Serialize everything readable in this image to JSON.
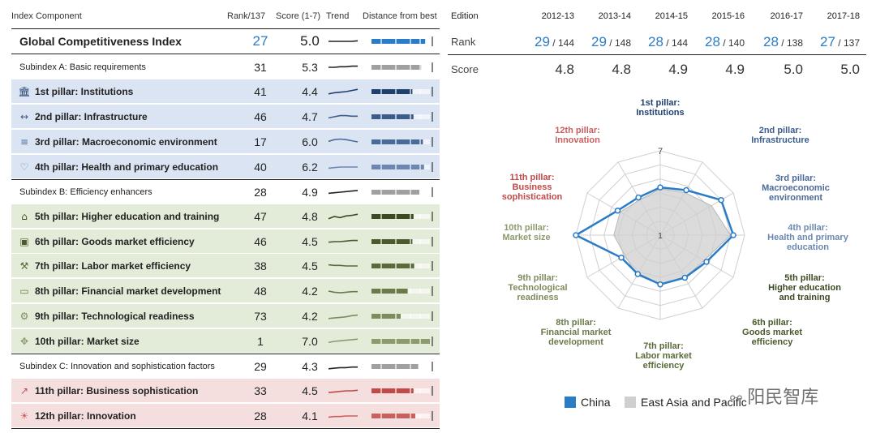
{
  "headers": {
    "index_component": "Index Component",
    "rank": "Rank/137",
    "score": "Score (1-7)",
    "trend": "Trend",
    "distance": "Distance from best"
  },
  "rows": [
    {
      "name": "Global Competitiveness Index",
      "rank": "27",
      "score": "5.0",
      "kind": "gci",
      "trend": [
        0.5,
        0.5,
        0.5,
        0.5,
        0.5,
        0.55
      ],
      "dist": 0.92,
      "color": "#2a7cc7",
      "icon": ""
    },
    {
      "name": "Subindex A: Basic requirements",
      "rank": "31",
      "score": "5.3",
      "kind": "sub",
      "trend": [
        0.5,
        0.5,
        0.55,
        0.55,
        0.6,
        0.6
      ],
      "dist": 0.85,
      "color": "#a0a0a0",
      "icon": ""
    },
    {
      "name": "1st pillar: Institutions",
      "rank": "41",
      "score": "4.4",
      "kind": "blue",
      "trend": [
        0.3,
        0.4,
        0.45,
        0.5,
        0.6,
        0.7
      ],
      "dist": 0.7,
      "color": "#1f3f6e",
      "icon": "institutions-icon"
    },
    {
      "name": "2nd pillar: Infrastructure",
      "rank": "46",
      "score": "4.7",
      "kind": "blue",
      "trend": [
        0.4,
        0.5,
        0.6,
        0.6,
        0.55,
        0.55
      ],
      "dist": 0.72,
      "color": "#3c5d8c",
      "icon": "infrastructure-icon"
    },
    {
      "name": "3rd pillar: Macroeconomic environment",
      "rank": "17",
      "score": "6.0",
      "kind": "blue",
      "trend": [
        0.55,
        0.7,
        0.75,
        0.7,
        0.6,
        0.5
      ],
      "dist": 0.88,
      "color": "#4a6a99",
      "icon": "macroeconomic-icon"
    },
    {
      "name": "4th pillar: Health and primary education",
      "rank": "40",
      "score": "6.2",
      "kind": "blue",
      "trend": [
        0.4,
        0.45,
        0.5,
        0.5,
        0.5,
        0.5
      ],
      "dist": 0.9,
      "color": "#6c88b0",
      "icon": "health-icon"
    },
    {
      "name": "Subindex B: Efficiency enhancers",
      "rank": "28",
      "score": "4.9",
      "kind": "sub",
      "trend": [
        0.4,
        0.45,
        0.5,
        0.55,
        0.6,
        0.65
      ],
      "dist": 0.82,
      "color": "#a0a0a0",
      "icon": ""
    },
    {
      "name": "5th pillar: Higher education and training",
      "rank": "47",
      "score": "4.8",
      "kind": "green",
      "trend": [
        0.3,
        0.5,
        0.4,
        0.55,
        0.6,
        0.7
      ],
      "dist": 0.72,
      "color": "#3c4a22",
      "icon": "education-icon"
    },
    {
      "name": "6th pillar: Goods market efficiency",
      "rank": "46",
      "score": "4.5",
      "kind": "green",
      "trend": [
        0.45,
        0.5,
        0.5,
        0.55,
        0.6,
        0.6
      ],
      "dist": 0.7,
      "color": "#4a5a2c",
      "icon": "goods-market-icon"
    },
    {
      "name": "7th pillar: Labor market efficiency",
      "rank": "38",
      "score": "4.5",
      "kind": "green",
      "trend": [
        0.6,
        0.55,
        0.55,
        0.5,
        0.5,
        0.5
      ],
      "dist": 0.73,
      "color": "#5a6a3a",
      "icon": "labor-market-icon"
    },
    {
      "name": "8th pillar: Financial market development",
      "rank": "48",
      "score": "4.2",
      "kind": "green",
      "trend": [
        0.5,
        0.4,
        0.35,
        0.4,
        0.45,
        0.45
      ],
      "dist": 0.62,
      "color": "#6b7a4a",
      "icon": "financial-market-icon"
    },
    {
      "name": "9th pillar: Technological readiness",
      "rank": "73",
      "score": "4.2",
      "kind": "green",
      "trend": [
        0.3,
        0.35,
        0.4,
        0.45,
        0.55,
        0.6
      ],
      "dist": 0.5,
      "color": "#7e8c5c",
      "icon": "tech-readiness-icon"
    },
    {
      "name": "10th pillar: Market size",
      "rank": "1",
      "score": "7.0",
      "kind": "green",
      "trend": [
        0.4,
        0.5,
        0.55,
        0.6,
        0.65,
        0.7
      ],
      "dist": 1.0,
      "color": "#8c9a6e",
      "icon": "market-size-icon"
    },
    {
      "name": "Subindex C: Innovation and sophistication factors",
      "rank": "29",
      "score": "4.3",
      "kind": "sub",
      "trend": [
        0.3,
        0.35,
        0.4,
        0.4,
        0.45,
        0.45
      ],
      "dist": 0.8,
      "color": "#a0a0a0",
      "icon": ""
    },
    {
      "name": "11th pillar: Business sophistication",
      "rank": "33",
      "score": "4.5",
      "kind": "red",
      "trend": [
        0.35,
        0.4,
        0.45,
        0.5,
        0.5,
        0.55
      ],
      "dist": 0.72,
      "color": "#c04a4a",
      "icon": "business-icon"
    },
    {
      "name": "12th pillar: Innovation",
      "rank": "28",
      "score": "4.1",
      "kind": "red",
      "trend": [
        0.4,
        0.45,
        0.45,
        0.5,
        0.5,
        0.5
      ],
      "dist": 0.75,
      "color": "#c86060",
      "icon": "innovation-icon"
    }
  ],
  "edition": {
    "label": "Edition",
    "years": [
      "2012-13",
      "2013-14",
      "2014-15",
      "2015-16",
      "2016-17",
      "2017-18"
    ],
    "rank_label": "Rank",
    "ranks": [
      {
        "rank": "29",
        "of": " / 144"
      },
      {
        "rank": "29",
        "of": " / 148"
      },
      {
        "rank": "28",
        "of": " / 144"
      },
      {
        "rank": "28",
        "of": " / 140"
      },
      {
        "rank": "28",
        "of": " / 138"
      },
      {
        "rank": "27",
        "of": " / 137"
      }
    ],
    "score_label": "Score",
    "scores": [
      "4.8",
      "4.8",
      "4.9",
      "4.9",
      "5.0",
      "5.0"
    ]
  },
  "chart_data": {
    "type": "radar",
    "axes": [
      {
        "label": [
          "1st pillar:",
          "Institutions"
        ],
        "color": "#1f3f6e"
      },
      {
        "label": [
          "2nd pillar:",
          "Infrastructure"
        ],
        "color": "#3c5d8c"
      },
      {
        "label": [
          "3rd pillar:",
          "Macroeconomic",
          "environment"
        ],
        "color": "#4a6a99"
      },
      {
        "label": [
          "4th pillar:",
          "Health and primary",
          "education"
        ],
        "color": "#6c88b0"
      },
      {
        "label": [
          "5th pillar:",
          "Higher education",
          "and training"
        ],
        "color": "#3c4a22"
      },
      {
        "label": [
          "6th pillar:",
          "Goods market",
          "efficiency"
        ],
        "color": "#4a5a2c"
      },
      {
        "label": [
          "7th pillar:",
          "Labor market",
          "efficiency"
        ],
        "color": "#5a6a3a"
      },
      {
        "label": [
          "8th pillar:",
          "Financial market",
          "development"
        ],
        "color": "#6b7a4a"
      },
      {
        "label": [
          "9th pillar:",
          "Technological",
          "readiness"
        ],
        "color": "#7e8c5c"
      },
      {
        "label": [
          "10th pillar:",
          "Market size"
        ],
        "color": "#8c9a6e"
      },
      {
        "label": [
          "11th pillar:",
          "Business",
          "sophistication"
        ],
        "color": "#c04a4a"
      },
      {
        "label": [
          "12th pillar:",
          "Innovation"
        ],
        "color": "#c86060"
      }
    ],
    "range": [
      1,
      7
    ],
    "ticks": [
      "7",
      "1"
    ],
    "series": [
      {
        "name": "China",
        "color": "#2a7cc7",
        "values": [
          4.4,
          4.7,
          6.0,
          6.2,
          4.8,
          4.5,
          4.5,
          4.2,
          4.2,
          7.0,
          4.5,
          4.1
        ]
      },
      {
        "name": "East Asia and Pacific",
        "color": "#cfcfcf",
        "values": [
          4.3,
          4.5,
          5.2,
          6.0,
          4.6,
          4.5,
          4.5,
          4.3,
          3.9,
          4.3,
          4.3,
          3.9
        ]
      }
    ]
  },
  "watermark": "阳民智库"
}
